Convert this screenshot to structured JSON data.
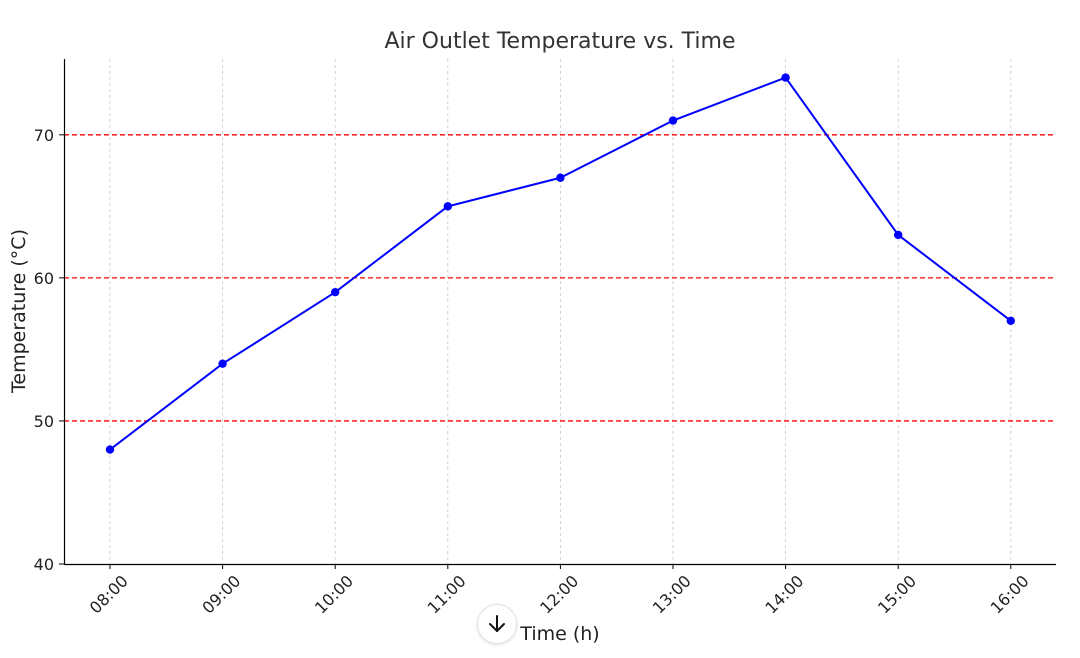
{
  "chart_data": {
    "type": "line",
    "title": "Air Outlet Temperature vs. Time",
    "xlabel": "Time (h)",
    "ylabel": "Temperature (°C)",
    "categories": [
      "08:00",
      "09:00",
      "10:00",
      "11:00",
      "12:00",
      "13:00",
      "14:00",
      "15:00",
      "16:00"
    ],
    "series": [
      {
        "values": [
          48,
          54,
          59,
          65,
          67,
          71,
          74,
          63,
          57
        ],
        "color": "#0000ff",
        "marker": "circle"
      }
    ],
    "reference_lines": [
      {
        "y": 50,
        "color": "#ff0000",
        "style": "dashed"
      },
      {
        "y": 60,
        "color": "#ff0000",
        "style": "dashed"
      },
      {
        "y": 70,
        "color": "#ff0000",
        "style": "dashed"
      }
    ],
    "ylim": [
      40,
      75.3
    ],
    "yticks": [
      40,
      50,
      60,
      70
    ],
    "grid": {
      "x": true,
      "y": false,
      "style": "dotted",
      "color": "#c8c8c8"
    },
    "x_tick_rotation": "45 degrees"
  },
  "overlay": {
    "scroll_down_icon": "arrow-down-icon"
  }
}
